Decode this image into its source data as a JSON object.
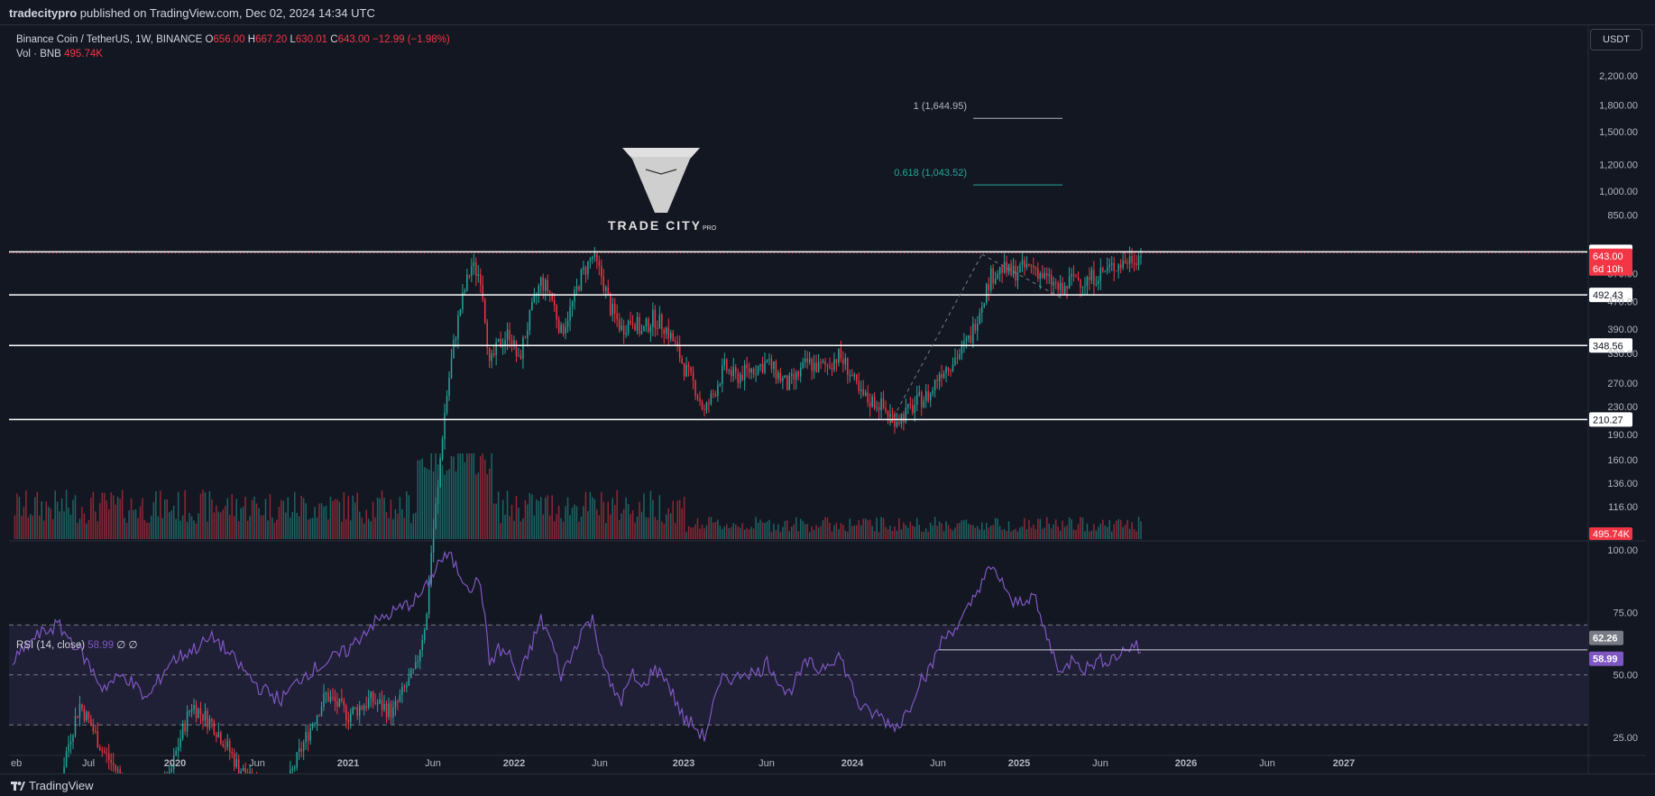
{
  "header": {
    "publisher": "tradecitypro",
    "published_text": " published on TradingView.com, Dec 02, 2024 14:34 UTC"
  },
  "legend": {
    "symbol": "Binance Coin / TetherUS, 1W, BINANCE",
    "o_label": "O",
    "o": "656.00",
    "h_label": "H",
    "h": "667.20",
    "l_label": "L",
    "l": "630.01",
    "c_label": "C",
    "c": "643.00",
    "change": "−12.99 (−1.98%)",
    "vol_label": "Vol · BNB",
    "vol": "495.74K"
  },
  "currency_button": "USDT",
  "watermark": {
    "brand": "TRADE CITY",
    "sub": "PRO"
  },
  "footer": {
    "brand": "TradingView"
  },
  "colors": {
    "up": "#26a69a",
    "down": "#f23645",
    "bg": "#131722",
    "rsi": "#7e57c2",
    "grid": "#2a2e39"
  },
  "chart_data": [
    {
      "type": "candlestick",
      "title": "Binance Coin / TetherUS, 1W, BINANCE",
      "y_scale": "log",
      "y_ticks": [
        "2,200.00",
        "1,800.00",
        "1,500.00",
        "1,200.00",
        "1,000.00",
        "850.00",
        "570.00",
        "470.00",
        "390.00",
        "330.00",
        "270.00",
        "230.00",
        "190.00",
        "160.00",
        "136.00",
        "116.00"
      ],
      "y_tick_values": [
        2200,
        1800,
        1500,
        1200,
        1000,
        850,
        570,
        470,
        390,
        330,
        270,
        230,
        190,
        160,
        136,
        116
      ],
      "x_ticks": [
        "eb",
        "Jul",
        "2020",
        "Jun",
        "2021",
        "Jun",
        "2022",
        "Jun",
        "2023",
        "Jun",
        "2024",
        "Jun",
        "2025",
        "Jun",
        "2026",
        "Jun",
        "2027"
      ],
      "horizontal_levels": [
        {
          "label": "660.72",
          "value": 660.72
        },
        {
          "label": "492.43",
          "value": 492.43
        },
        {
          "label": "348.56",
          "value": 348.56
        },
        {
          "label": "210.27",
          "value": 210.27
        }
      ],
      "last_price": {
        "label": "643.00",
        "countdown": "6d 10h",
        "value": 643
      },
      "fibonacci": [
        {
          "label": "1 (1,644.95)",
          "value": 1644.95
        },
        {
          "label": "0.618 (1,043.52)",
          "value": 1043.52
        }
      ],
      "price_path": [
        [
          0,
          16.5
        ],
        [
          10,
          14.5
        ],
        [
          20,
          16.0
        ],
        [
          30,
          30.0
        ],
        [
          40,
          22.0
        ],
        [
          50,
          17.5
        ],
        [
          60,
          15.0
        ],
        [
          70,
          18.0
        ],
        [
          80,
          30.0
        ],
        [
          90,
          26.0
        ],
        [
          100,
          20.0
        ],
        [
          110,
          16.5
        ],
        [
          120,
          15.0
        ],
        [
          130,
          23.0
        ],
        [
          140,
          32.0
        ],
        [
          150,
          28.0
        ],
        [
          160,
          31.0
        ],
        [
          170,
          28.5
        ],
        [
          180,
          38.0
        ],
        [
          185,
          55.0
        ],
        [
          190,
          130.0
        ],
        [
          195,
          280.0
        ],
        [
          200,
          450.0
        ],
        [
          205,
          600.0
        ],
        [
          209,
          560.0
        ],
        [
          213,
          300.0
        ],
        [
          217,
          350.0
        ],
        [
          222,
          380.0
        ],
        [
          226,
          310.0
        ],
        [
          231,
          420.0
        ],
        [
          236,
          540.0
        ],
        [
          240,
          500.0
        ],
        [
          245,
          380.0
        ],
        [
          250,
          460.0
        ],
        [
          254,
          560.0
        ],
        [
          259,
          640.0
        ],
        [
          263,
          560.0
        ],
        [
          267,
          450.0
        ],
        [
          272,
          390.0
        ],
        [
          277,
          420.0
        ],
        [
          281,
          380.0
        ],
        [
          286,
          420.0
        ],
        [
          291,
          400.0
        ],
        [
          295,
          360.0
        ],
        [
          300,
          300.0
        ],
        [
          304,
          270.0
        ],
        [
          309,
          220.0
        ],
        [
          313,
          250.0
        ],
        [
          318,
          300.0
        ],
        [
          323,
          280.0
        ],
        [
          327,
          290.0
        ],
        [
          332,
          300.0
        ],
        [
          337,
          310.0
        ],
        [
          341,
          290.0
        ],
        [
          346,
          265.0
        ],
        [
          350,
          280.0
        ],
        [
          355,
          310.0
        ],
        [
          360,
          300.0
        ],
        [
          364,
          305.0
        ],
        [
          369,
          325.0
        ],
        [
          373,
          300.0
        ],
        [
          378,
          250.0
        ],
        [
          382,
          240.0
        ],
        [
          387,
          235.0
        ],
        [
          392,
          215.0
        ],
        [
          396,
          212.0
        ],
        [
          401,
          225.0
        ],
        [
          405,
          240.0
        ],
        [
          410,
          250.0
        ],
        [
          414,
          290.0
        ],
        [
          419,
          310.0
        ],
        [
          423,
          330.0
        ],
        [
          428,
          370.0
        ],
        [
          433,
          470.0
        ],
        [
          437,
          560.0
        ],
        [
          442,
          590.0
        ],
        [
          446,
          570.0
        ],
        [
          451,
          590.0
        ],
        [
          456,
          600.0
        ],
        [
          460,
          560.0
        ],
        [
          465,
          530.0
        ],
        [
          469,
          500.0
        ],
        [
          474,
          560.0
        ],
        [
          479,
          540.0
        ],
        [
          483,
          560.0
        ],
        [
          488,
          580.0
        ],
        [
          492,
          600.0
        ],
        [
          497,
          620.0
        ],
        [
          501,
          640.0
        ],
        [
          504,
          643.0
        ]
      ],
      "candle_x_range": [
        0,
        504
      ],
      "volume_label": "495.74K"
    },
    {
      "type": "line",
      "title": "RSI (14, close)",
      "name": "RSI",
      "value": "58.99",
      "extra": "∅ ∅",
      "y_ticks": [
        "100.00",
        "75.00",
        "50.00",
        "25.00"
      ],
      "y_tick_values": [
        100,
        75,
        50,
        25
      ],
      "bands": {
        "upper": 70,
        "middle": 50,
        "lower": 30
      },
      "markers": [
        {
          "label": "62.26",
          "value": 62.26
        },
        {
          "label": "58.99",
          "value": 58.99
        }
      ],
      "rsi_path": [
        [
          0,
          55
        ],
        [
          10,
          65
        ],
        [
          20,
          70
        ],
        [
          30,
          60
        ],
        [
          40,
          45
        ],
        [
          50,
          50
        ],
        [
          60,
          40
        ],
        [
          70,
          55
        ],
        [
          80,
          60
        ],
        [
          90,
          65
        ],
        [
          100,
          55
        ],
        [
          110,
          45
        ],
        [
          120,
          40
        ],
        [
          130,
          50
        ],
        [
          140,
          55
        ],
        [
          150,
          60
        ],
        [
          160,
          70
        ],
        [
          170,
          75
        ],
        [
          180,
          80
        ],
        [
          185,
          85
        ],
        [
          190,
          95
        ],
        [
          195,
          98
        ],
        [
          200,
          90
        ],
        [
          205,
          85
        ],
        [
          209,
          88
        ],
        [
          213,
          55
        ],
        [
          217,
          60
        ],
        [
          222,
          58
        ],
        [
          226,
          48
        ],
        [
          231,
          60
        ],
        [
          236,
          72
        ],
        [
          240,
          65
        ],
        [
          245,
          50
        ],
        [
          250,
          58
        ],
        [
          254,
          68
        ],
        [
          259,
          72
        ],
        [
          263,
          58
        ],
        [
          267,
          45
        ],
        [
          272,
          40
        ],
        [
          277,
          50
        ],
        [
          281,
          44
        ],
        [
          286,
          52
        ],
        [
          291,
          50
        ],
        [
          295,
          42
        ],
        [
          300,
          32
        ],
        [
          304,
          30
        ],
        [
          309,
          25
        ],
        [
          313,
          38
        ],
        [
          318,
          50
        ],
        [
          323,
          48
        ],
        [
          327,
          52
        ],
        [
          332,
          50
        ],
        [
          337,
          55
        ],
        [
          341,
          50
        ],
        [
          346,
          42
        ],
        [
          350,
          48
        ],
        [
          355,
          55
        ],
        [
          360,
          52
        ],
        [
          364,
          55
        ],
        [
          369,
          58
        ],
        [
          373,
          50
        ],
        [
          378,
          38
        ],
        [
          382,
          35
        ],
        [
          387,
          34
        ],
        [
          392,
          30
        ],
        [
          396,
          30
        ],
        [
          401,
          38
        ],
        [
          405,
          48
        ],
        [
          410,
          52
        ],
        [
          414,
          62
        ],
        [
          419,
          68
        ],
        [
          423,
          70
        ],
        [
          428,
          78
        ],
        [
          433,
          88
        ],
        [
          437,
          92
        ],
        [
          442,
          88
        ],
        [
          446,
          78
        ],
        [
          451,
          80
        ],
        [
          456,
          82
        ],
        [
          460,
          70
        ],
        [
          465,
          58
        ],
        [
          469,
          50
        ],
        [
          474,
          58
        ],
        [
          479,
          52
        ],
        [
          483,
          55
        ],
        [
          488,
          56
        ],
        [
          492,
          57
        ],
        [
          497,
          60
        ],
        [
          501,
          62
        ],
        [
          504,
          58.99
        ]
      ]
    }
  ]
}
